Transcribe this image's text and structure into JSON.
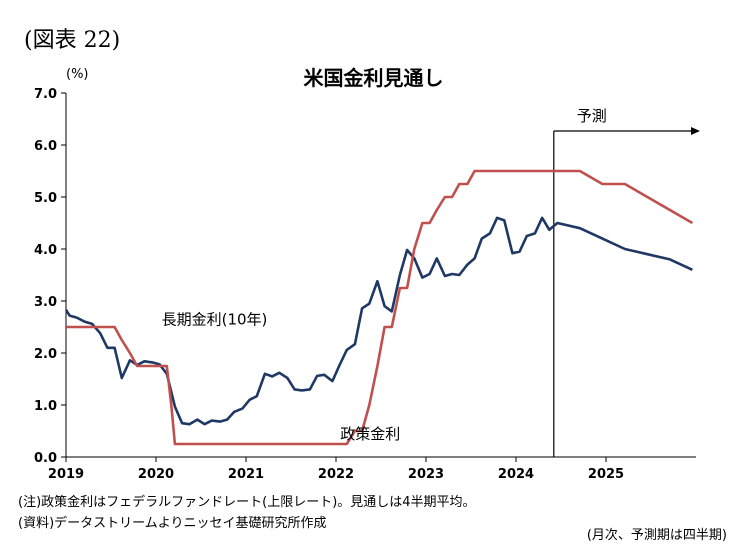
{
  "figure_label": "(図表 22)",
  "unit_label": "(%)",
  "notes": {
    "note1": "(注)政策金利はフェデラルファンドレート(上限レート)。見通しは4半期平均。",
    "note2": "(資料)データストリームよりニッセイ基礎研究所作成",
    "frequency": "(月次、予測期は四半期)"
  },
  "colors": {
    "long_rate": "#1F3864",
    "policy_rate": "#C0504D",
    "axis": "#000000",
    "grid": "#d9d9d9"
  },
  "chart_data": {
    "type": "line",
    "title": "米国金利見通し",
    "xlabel": "",
    "ylabel": "(%)",
    "xlim": [
      2019.0,
      2026.0
    ],
    "ylim": [
      0.0,
      7.0
    ],
    "grid": false,
    "x_ticks": [
      2019,
      2020,
      2021,
      2022,
      2023,
      2024,
      2025
    ],
    "x_tick_labels": [
      "2019",
      "2020",
      "2021",
      "2022",
      "2023",
      "2024",
      "2025"
    ],
    "y_ticks": [
      0,
      1,
      2,
      3,
      4,
      5,
      6,
      7
    ],
    "y_tick_labels": [
      "0.0",
      "1.0",
      "2.0",
      "3.0",
      "4.0",
      "5.0",
      "6.0",
      "7.0"
    ],
    "forecast": {
      "start": 2024.42,
      "label": "予測"
    },
    "series": [
      {
        "name": "長期金利(10年)",
        "label_at": [
          2020.65,
          2.55
        ],
        "points": [
          [
            2019.0,
            2.83
          ],
          [
            2019.04,
            2.72
          ],
          [
            2019.12,
            2.68
          ],
          [
            2019.21,
            2.6
          ],
          [
            2019.29,
            2.56
          ],
          [
            2019.38,
            2.38
          ],
          [
            2019.46,
            2.1
          ],
          [
            2019.54,
            2.1
          ],
          [
            2019.62,
            1.52
          ],
          [
            2019.71,
            1.86
          ],
          [
            2019.79,
            1.77
          ],
          [
            2019.87,
            1.84
          ],
          [
            2019.96,
            1.82
          ],
          [
            2020.04,
            1.78
          ],
          [
            2020.12,
            1.6
          ],
          [
            2020.21,
            0.97
          ],
          [
            2020.29,
            0.65
          ],
          [
            2020.37,
            0.63
          ],
          [
            2020.46,
            0.72
          ],
          [
            2020.54,
            0.63
          ],
          [
            2020.62,
            0.7
          ],
          [
            2020.71,
            0.68
          ],
          [
            2020.79,
            0.72
          ],
          [
            2020.87,
            0.87
          ],
          [
            2020.96,
            0.93
          ],
          [
            2021.04,
            1.1
          ],
          [
            2021.12,
            1.17
          ],
          [
            2021.21,
            1.6
          ],
          [
            2021.29,
            1.55
          ],
          [
            2021.37,
            1.62
          ],
          [
            2021.46,
            1.52
          ],
          [
            2021.54,
            1.3
          ],
          [
            2021.62,
            1.28
          ],
          [
            2021.71,
            1.3
          ],
          [
            2021.79,
            1.56
          ],
          [
            2021.87,
            1.58
          ],
          [
            2021.96,
            1.46
          ],
          [
            2022.04,
            1.77
          ],
          [
            2022.12,
            2.06
          ],
          [
            2022.21,
            2.17
          ],
          [
            2022.29,
            2.86
          ],
          [
            2022.37,
            2.95
          ],
          [
            2022.46,
            3.38
          ],
          [
            2022.54,
            2.9
          ],
          [
            2022.62,
            2.8
          ],
          [
            2022.71,
            3.5
          ],
          [
            2022.79,
            3.98
          ],
          [
            2022.87,
            3.82
          ],
          [
            2022.96,
            3.45
          ],
          [
            2023.04,
            3.52
          ],
          [
            2023.12,
            3.82
          ],
          [
            2023.21,
            3.48
          ],
          [
            2023.29,
            3.52
          ],
          [
            2023.37,
            3.5
          ],
          [
            2023.46,
            3.7
          ],
          [
            2023.54,
            3.82
          ],
          [
            2023.62,
            4.2
          ],
          [
            2023.71,
            4.3
          ],
          [
            2023.79,
            4.6
          ],
          [
            2023.87,
            4.55
          ],
          [
            2023.96,
            3.92
          ],
          [
            2024.04,
            3.95
          ],
          [
            2024.12,
            4.25
          ],
          [
            2024.21,
            4.3
          ],
          [
            2024.29,
            4.6
          ],
          [
            2024.37,
            4.37
          ],
          [
            2024.46,
            4.5
          ],
          [
            2024.71,
            4.4
          ],
          [
            2024.96,
            4.2
          ],
          [
            2025.21,
            4.0
          ],
          [
            2025.46,
            3.9
          ],
          [
            2025.71,
            3.8
          ],
          [
            2025.96,
            3.6
          ]
        ]
      },
      {
        "name": "政策金利",
        "label_at": [
          2022.38,
          0.35
        ],
        "points": [
          [
            2019.0,
            2.5
          ],
          [
            2019.54,
            2.5
          ],
          [
            2019.62,
            2.25
          ],
          [
            2019.71,
            2.0
          ],
          [
            2019.79,
            1.75
          ],
          [
            2020.12,
            1.75
          ],
          [
            2020.17,
            1.0
          ],
          [
            2020.21,
            0.25
          ],
          [
            2022.12,
            0.25
          ],
          [
            2022.21,
            0.5
          ],
          [
            2022.29,
            0.5
          ],
          [
            2022.37,
            1.0
          ],
          [
            2022.46,
            1.75
          ],
          [
            2022.54,
            2.5
          ],
          [
            2022.62,
            2.5
          ],
          [
            2022.71,
            3.25
          ],
          [
            2022.79,
            3.25
          ],
          [
            2022.87,
            4.0
          ],
          [
            2022.96,
            4.5
          ],
          [
            2023.04,
            4.5
          ],
          [
            2023.12,
            4.75
          ],
          [
            2023.21,
            5.0
          ],
          [
            2023.29,
            5.0
          ],
          [
            2023.37,
            5.25
          ],
          [
            2023.46,
            5.25
          ],
          [
            2023.54,
            5.5
          ],
          [
            2024.71,
            5.5
          ],
          [
            2024.96,
            5.25
          ],
          [
            2025.21,
            5.25
          ],
          [
            2025.96,
            4.5
          ]
        ]
      }
    ]
  }
}
